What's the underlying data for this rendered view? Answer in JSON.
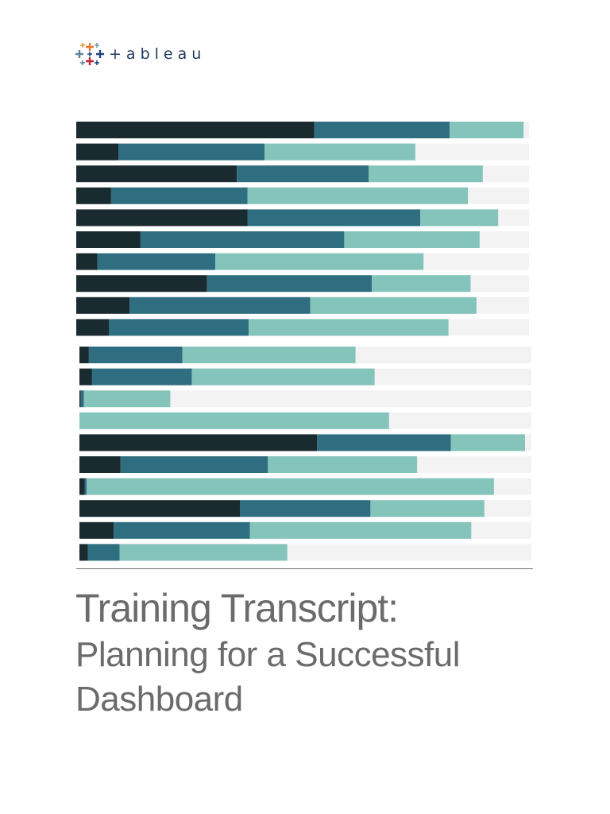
{
  "logo": {
    "wordmark": "+ableau",
    "icon": "tableau-plus-icon"
  },
  "cover": {
    "title": "Training Transcript:",
    "subtitle_line1": "Planning for a Successful",
    "subtitle_line2": "Dashboard"
  },
  "colors": {
    "dark": "#1a2b30",
    "mid": "#2f6e80",
    "light": "#84c4ba",
    "track": "#f3f3f3",
    "text": "#6b6b6b",
    "logo_text": "#1f3a5f"
  },
  "chart_data": {
    "type": "bar",
    "orientation": "horizontal",
    "stacked": true,
    "groups": [
      {
        "rows": [
          [
            52.6,
            29.9,
            16.3
          ],
          [
            9.3,
            32.3,
            33.3
          ],
          [
            35.5,
            29.1,
            25.2
          ],
          [
            7.7,
            30.1,
            48.7
          ],
          [
            37.8,
            38.2,
            17.2
          ],
          [
            14.2,
            45.0,
            29.9
          ],
          [
            4.7,
            26.0,
            46.0
          ],
          [
            28.9,
            36.4,
            21.8
          ],
          [
            11.8,
            39.9,
            36.7
          ],
          [
            7.2,
            30.9,
            44.1
          ]
        ]
      },
      {
        "rows": [
          [
            2.1,
            20.7,
            38.3
          ],
          [
            2.8,
            22.1,
            40.4
          ],
          [
            0.3,
            0.7,
            19.1
          ],
          [
            0,
            0,
            68.5
          ],
          [
            52.6,
            29.6,
            16.4
          ],
          [
            9.1,
            32.6,
            33.0
          ],
          [
            1.2,
            0.4,
            90.1
          ],
          [
            35.5,
            28.9,
            25.2
          ],
          [
            7.6,
            30.1,
            49.0
          ],
          [
            1.9,
            7.0,
            37.1
          ]
        ]
      }
    ]
  }
}
